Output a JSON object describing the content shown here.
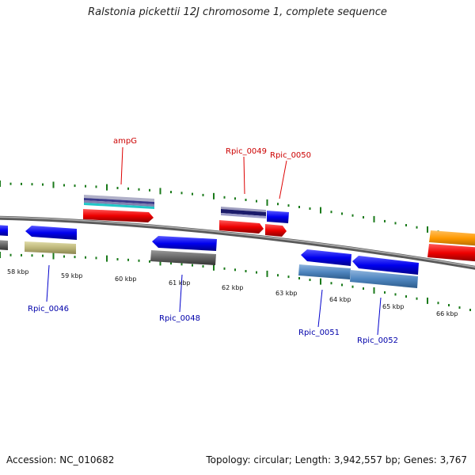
{
  "title": "Ralstonia pickettii 12J chromosome 1, complete sequence",
  "footer": {
    "accession": "Accession: NC_010682",
    "topology": "Topology: circular; Length: 3,942,557 bp; Genes: 3,767"
  },
  "colors": {
    "backbone": "#888888",
    "tick": "#1a7a1a",
    "label_red": "#cc0000",
    "label_blue": "#0000aa"
  },
  "scale": {
    "unit": "kbp",
    "ticks": [
      "58 kbp",
      "59 kbp",
      "60 kbp",
      "61 kbp",
      "62 kbp",
      "63 kbp",
      "64 kbp",
      "65 kbp",
      "66 kbp"
    ]
  },
  "gene_labels": {
    "top": [
      "ampG",
      "Rpic_0049",
      "Rpic_0050"
    ],
    "bottom": [
      "Rpic_0046",
      "Rpic_0048",
      "Rpic_0051",
      "Rpic_0052"
    ]
  }
}
